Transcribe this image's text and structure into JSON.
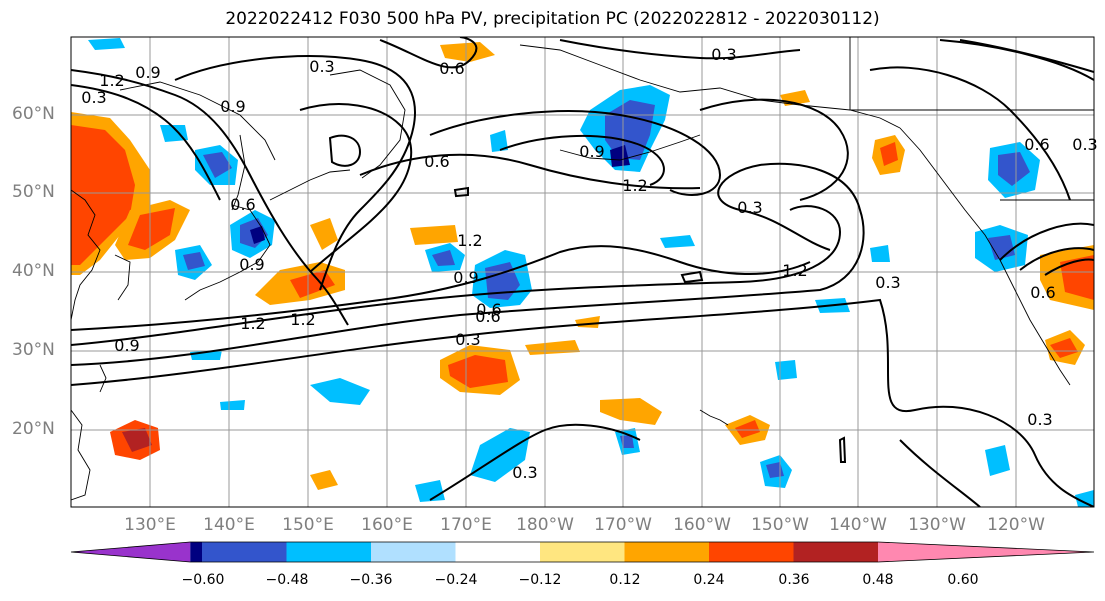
{
  "title": "2022022412 F030 500 hPa PV, precipitation PC (2022022812 - 2022030112)",
  "lat_labels": [
    "60°N",
    "50°N",
    "40°N",
    "30°N",
    "20°N"
  ],
  "lon_labels": [
    "130°E",
    "140°E",
    "150°E",
    "160°E",
    "170°E",
    "180°W",
    "170°W",
    "160°W",
    "150°W",
    "140°W",
    "130°W",
    "120°W"
  ],
  "colorbar": {
    "ticks": [
      "−0.60",
      "−0.48",
      "−0.36",
      "−0.24",
      "−0.12",
      "0.12",
      "0.24",
      "0.36",
      "0.48",
      "0.60"
    ],
    "colors": [
      "#9933cc",
      "#000080",
      "#3355cc",
      "#00bfff",
      "#b0e0ff",
      "#ffffff",
      "#ffe680",
      "#ffa500",
      "#ff4500",
      "#b22222",
      "#ff88b0"
    ]
  },
  "contour_labels": [
    "1.2",
    "0.9",
    "0.3",
    "0.6",
    "0.9",
    "0.6",
    "0.3",
    "0.9",
    "0.3",
    "0.6",
    "0.9",
    "1.2",
    "0.6",
    "0.6",
    "1.2",
    "0.9",
    "0.6",
    "0.3",
    "0.9",
    "0.3",
    "1.2",
    "1.2",
    "1.2",
    "0.3",
    "0.6",
    "0.3",
    "0.3",
    "0.3"
  ]
}
